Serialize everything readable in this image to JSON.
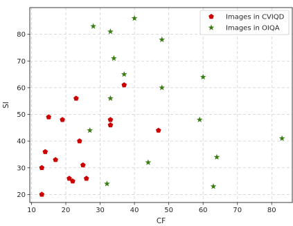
{
  "chart_data": {
    "type": "scatter",
    "xlabel": "CF",
    "ylabel": "SI",
    "xlim": [
      9.5,
      86
    ],
    "ylim": [
      17,
      90
    ],
    "xticks": [
      10,
      20,
      30,
      40,
      50,
      60,
      70,
      80
    ],
    "yticks": [
      20,
      30,
      40,
      50,
      60,
      70,
      80
    ],
    "grid": true,
    "legend_position": "top-right",
    "series": [
      {
        "name": "Images in CVIQD",
        "marker": "pentagon",
        "color": "#cc0000",
        "points": [
          [
            13,
            20
          ],
          [
            13,
            30
          ],
          [
            14,
            36
          ],
          [
            15,
            49
          ],
          [
            17,
            33
          ],
          [
            19,
            48
          ],
          [
            21,
            26
          ],
          [
            22,
            25
          ],
          [
            23,
            56
          ],
          [
            24,
            40
          ],
          [
            25,
            31
          ],
          [
            26,
            26
          ],
          [
            33,
            48
          ],
          [
            33,
            46
          ],
          [
            37,
            61
          ],
          [
            47,
            44
          ]
        ]
      },
      {
        "name": "Images in OIQA",
        "marker": "star",
        "color": "#3a7d14",
        "points": [
          [
            27,
            44
          ],
          [
            28,
            83
          ],
          [
            32,
            24
          ],
          [
            33,
            81
          ],
          [
            33,
            56
          ],
          [
            34,
            71
          ],
          [
            37,
            65
          ],
          [
            40,
            86
          ],
          [
            44,
            32
          ],
          [
            48,
            78
          ],
          [
            48,
            60
          ],
          [
            59,
            48
          ],
          [
            60,
            64
          ],
          [
            63,
            23
          ],
          [
            64,
            34
          ],
          [
            83,
            41
          ]
        ]
      }
    ]
  }
}
